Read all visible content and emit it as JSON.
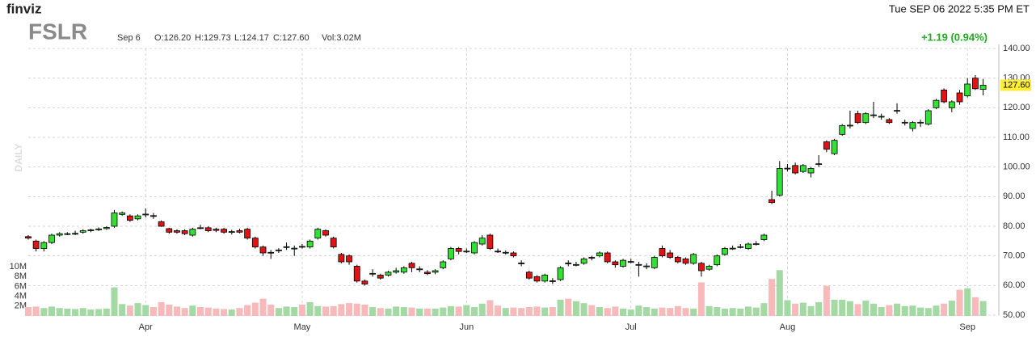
{
  "header": {
    "logo": "finviz",
    "datetime": "Tue SEP 06 2022 5:35 PM ET",
    "ticker": "FSLR",
    "date": "Sep 6",
    "open": "O:126.20",
    "high": "H:129.73",
    "low": "L:124.17",
    "close": "C:127.60",
    "volume": "Vol:3.02M",
    "change": "+1.19 (0.94%)",
    "timeframe": "DAILY"
  },
  "chart_data": {
    "type": "candlestick",
    "up_color": "#33e033",
    "down_color": "#e01414",
    "volume_up_color": "#a3d9a3",
    "volume_down_color": "#f7b9b9",
    "change_color": "#22aa22",
    "grid": true,
    "last_price_label": "127.60",
    "xlim": [
      -0.5,
      123.5
    ],
    "xticks": [
      {
        "value": 15,
        "label": "Apr"
      },
      {
        "value": 35,
        "label": "May"
      },
      {
        "value": 56,
        "label": "Jun"
      },
      {
        "value": 77,
        "label": "Jul"
      },
      {
        "value": 97,
        "label": "Aug"
      },
      {
        "value": 120,
        "label": "Sep"
      }
    ],
    "ylim": [
      50,
      140
    ],
    "yticks": [
      {
        "value": 50,
        "label": "50.00"
      },
      {
        "value": 60,
        "label": "60.00"
      },
      {
        "value": 70,
        "label": "70.00"
      },
      {
        "value": 80,
        "label": "80.00"
      },
      {
        "value": 90,
        "label": "90.00"
      },
      {
        "value": 100,
        "label": "100.00"
      },
      {
        "value": 110,
        "label": "110.00"
      },
      {
        "value": 120,
        "label": "120.00"
      },
      {
        "value": 130,
        "label": "130.00"
      },
      {
        "value": 140,
        "label": "140.00"
      }
    ],
    "volume_lim": [
      0,
      10
    ],
    "volume_ticks": [
      {
        "value": 2,
        "label": "2M"
      },
      {
        "value": 4,
        "label": "4M"
      },
      {
        "value": 6,
        "label": "6M"
      },
      {
        "value": 8,
        "label": "8M"
      },
      {
        "value": 10,
        "label": "10M"
      }
    ],
    "open": [
      76.5,
      75,
      72.5,
      74.5,
      77,
      77.5,
      77.5,
      78,
      78.5,
      79,
      79.2,
      80,
      84,
      83.5,
      82.5,
      84,
      83.6,
      81.5,
      79.2,
      78.5,
      78.5,
      77,
      79.5,
      79.5,
      79,
      79,
      78,
      78.5,
      79,
      76,
      73,
      71.2,
      71.8,
      73,
      72.4,
      73.2,
      73,
      76,
      78.5,
      76,
      70.5,
      70,
      66.5,
      61.5,
      64,
      63.5,
      63.5,
      64.5,
      64.5,
      67.5,
      65.5,
      64.5,
      64.5,
      66,
      69,
      72.5,
      71.5,
      71,
      74,
      77,
      71.6,
      71,
      71,
      67.6,
      64.5,
      63,
      61.5,
      61.6,
      62,
      67.6,
      67,
      67.5,
      69.5,
      70,
      71,
      68,
      66.5,
      68,
      67,
      66.5,
      66,
      72.5,
      71,
      69.5,
      69,
      67.5,
      67.5,
      65.5,
      67,
      70.5,
      72.5,
      73,
      72.5,
      74,
      75.5,
      89,
      90.5,
      99.5,
      100.5,
      98.5,
      98,
      101,
      108.5,
      104.5,
      111,
      114,
      118,
      115,
      117.5,
      117,
      116,
      119,
      115,
      113,
      115,
      114.5,
      120,
      126,
      120,
      125,
      124,
      130,
      126.2
    ],
    "high": [
      77,
      75.5,
      75,
      77.5,
      78,
      78,
      78.5,
      79,
      79.2,
      79.6,
      80,
      85.5,
      85,
      84,
      84,
      86,
      84.5,
      82,
      79.5,
      79,
      79,
      79.5,
      80.5,
      80,
      79.5,
      79.5,
      78.8,
      79.2,
      79.5,
      76.5,
      73.5,
      72,
      72.6,
      74.5,
      73.5,
      74,
      75.5,
      79.5,
      79,
      76.5,
      71,
      70.5,
      67,
      62,
      65.5,
      64,
      65,
      66,
      66.5,
      68,
      66.5,
      65.2,
      65.5,
      68.5,
      73,
      73,
      72.5,
      75,
      77,
      77.5,
      72.5,
      71.8,
      71.5,
      68.5,
      65,
      63.5,
      64,
      62.5,
      66.5,
      68.5,
      68,
      69.5,
      70,
      71.5,
      71.5,
      68.5,
      69,
      69,
      68,
      67.5,
      70,
      73.5,
      72,
      70,
      69.5,
      71,
      68,
      67,
      70.5,
      73,
      73.5,
      74,
      74.5,
      75,
      77.5,
      92,
      102,
      101,
      101.5,
      101,
      100,
      104,
      109,
      109.5,
      114.5,
      119,
      119,
      118.5,
      122,
      118,
      116.5,
      121.5,
      116,
      115.5,
      116,
      119.5,
      123,
      126.5,
      122.5,
      126,
      130,
      131,
      129.73
    ],
    "low": [
      75.5,
      71.5,
      71.5,
      74,
      76.5,
      77,
      77,
      77.5,
      78,
      78.4,
      78.8,
      79.5,
      83.5,
      81.5,
      82,
      83,
      82.5,
      79.8,
      77.5,
      77.5,
      77,
      76.5,
      79,
      78,
      78,
      77.5,
      77.2,
      77.6,
      75.5,
      72.5,
      70,
      69,
      71,
      72,
      70,
      72.5,
      72.5,
      75.5,
      76.5,
      72.5,
      67.5,
      67,
      61,
      60,
      63,
      62,
      63,
      64,
      64,
      64.5,
      64.5,
      63.5,
      63.8,
      65.5,
      68.5,
      70.5,
      71,
      70.5,
      73.5,
      72,
      71,
      70.5,
      69.5,
      66.5,
      62,
      61,
      61,
      60.5,
      61.5,
      66.5,
      66.5,
      67,
      68.5,
      69.5,
      67.5,
      66,
      66,
      67.5,
      63,
      65.5,
      65.5,
      69.5,
      69,
      67.5,
      67,
      67,
      63,
      65,
      66.5,
      70,
      72,
      72.5,
      72,
      73.5,
      75,
      87.5,
      90,
      98.5,
      97.5,
      98,
      96.5,
      100,
      105,
      104,
      110.5,
      113,
      114.5,
      114.5,
      116.5,
      116,
      114.5,
      118,
      114,
      112,
      113.5,
      114,
      119.5,
      121.5,
      118.5,
      121,
      123.5,
      126,
      124.17
    ],
    "close": [
      76,
      72.5,
      74.5,
      77,
      77.5,
      77.5,
      77.6,
      78.5,
      78.8,
      79.1,
      79.6,
      84.5,
      84.5,
      82,
      83.5,
      84.1,
      83.4,
      80,
      78,
      78,
      77.5,
      79,
      79.4,
      78.5,
      78.6,
      78,
      78.2,
      78,
      76,
      73,
      71,
      71,
      72,
      73.1,
      72.6,
      73,
      75,
      79,
      77,
      73,
      68,
      68,
      61.5,
      60.5,
      64.1,
      62.5,
      64.5,
      65,
      66,
      66,
      65.6,
      64,
      65,
      68,
      72.5,
      71.5,
      71.6,
      74.5,
      76,
      72.5,
      71.5,
      71.2,
      70,
      67.5,
      62.5,
      61.5,
      63.5,
      61.5,
      66,
      67.5,
      67.1,
      69,
      69.4,
      71,
      68,
      67,
      68.5,
      68.1,
      67.1,
      66.6,
      69.5,
      70,
      69.5,
      68,
      67.5,
      70.5,
      65,
      66.5,
      70,
      72.5,
      72.6,
      73.1,
      74,
      74.1,
      77,
      88,
      99.5,
      99.6,
      98,
      100.5,
      99.5,
      101.1,
      106,
      109,
      114,
      114.1,
      115,
      118,
      117.6,
      117.1,
      115,
      119.1,
      115.1,
      115,
      115.1,
      119,
      122.5,
      122,
      122,
      122,
      128,
      126.41,
      127.6
    ],
    "volume": [
      1.8,
      1.9,
      1.6,
      1.9,
      1.6,
      1.5,
      1.4,
      1.6,
      1.3,
      1.4,
      1.5,
      5.8,
      2.4,
      2.1,
      2.6,
      2.2,
      1.8,
      2.8,
      2.3,
      1.9,
      1.6,
      2.1,
      1.8,
      1.7,
      1.5,
      1.4,
      1.3,
      1.6,
      2.2,
      2.7,
      3.5,
      2.3,
      1.6,
      1.9,
      1.8,
      2.3,
      2.8,
      2.0,
      1.9,
      2.0,
      2.4,
      2.6,
      2.5,
      2.3,
      1.8,
      1.6,
      1.5,
      1.9,
      1.8,
      1.7,
      1.5,
      1.5,
      1.5,
      1.7,
      2.0,
      1.9,
      2.2,
      1.8,
      2.5,
      3.2,
      2.1,
      1.6,
      1.7,
      1.6,
      1.8,
      1.9,
      1.7,
      1.8,
      3.3,
      3.5,
      3.0,
      2.6,
      2.2,
      1.8,
      1.6,
      1.9,
      1.5,
      1.3,
      2.1,
      1.8,
      1.5,
      1.7,
      1.6,
      2.0,
      1.6,
      1.5,
      6.8,
      2.0,
      1.8,
      1.5,
      1.6,
      1.5,
      1.9,
      1.7,
      2.6,
      7.5,
      9.3,
      3.2,
      2.5,
      2.7,
      2.0,
      2.8,
      6.1,
      3.3,
      3.3,
      3.0,
      2.4,
      3.1,
      2.5,
      1.8,
      2.2,
      2.5,
      2.0,
      2.1,
      1.7,
      1.6,
      2.1,
      2.5,
      3.1,
      5.3,
      5.6,
      3.8,
      3.02
    ]
  }
}
